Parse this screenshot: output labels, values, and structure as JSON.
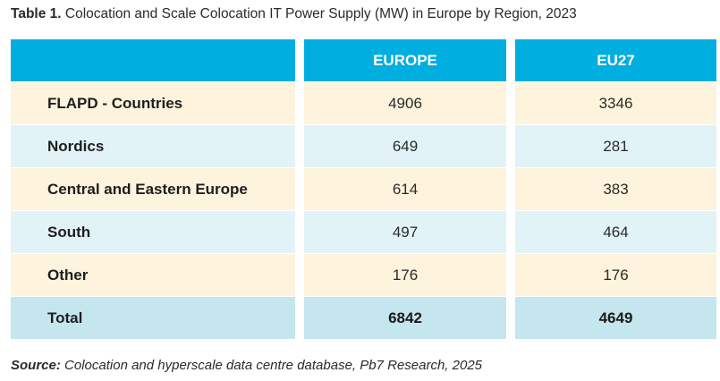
{
  "title": {
    "number": "Table 1.",
    "text": "Colocation and Scale Colocation IT Power Supply (MW) in Europe by Region, 2023"
  },
  "chart_data": {
    "type": "table",
    "columns": [
      "",
      "EUROPE",
      "EU27"
    ],
    "rows": [
      {
        "label": "FLAPD - Countries",
        "europe": "4906",
        "eu27": "3346"
      },
      {
        "label": "Nordics",
        "europe": "649",
        "eu27": "281"
      },
      {
        "label": "Central and Eastern Europe",
        "europe": "614",
        "eu27": "383"
      },
      {
        "label": "South",
        "europe": "497",
        "eu27": "464"
      },
      {
        "label": "Other",
        "europe": "176",
        "eu27": "176"
      },
      {
        "label": "Total",
        "europe": "6842",
        "eu27": "4649"
      }
    ]
  },
  "source": {
    "label": "Source:",
    "text": "Colocation and hyperscale data centre database, Pb7 Research, 2025"
  },
  "colors": {
    "header": "#00aee0",
    "row_light": "#fef3dc",
    "row_blue": "#e2f3f8",
    "row_total": "#c5e6ee"
  }
}
